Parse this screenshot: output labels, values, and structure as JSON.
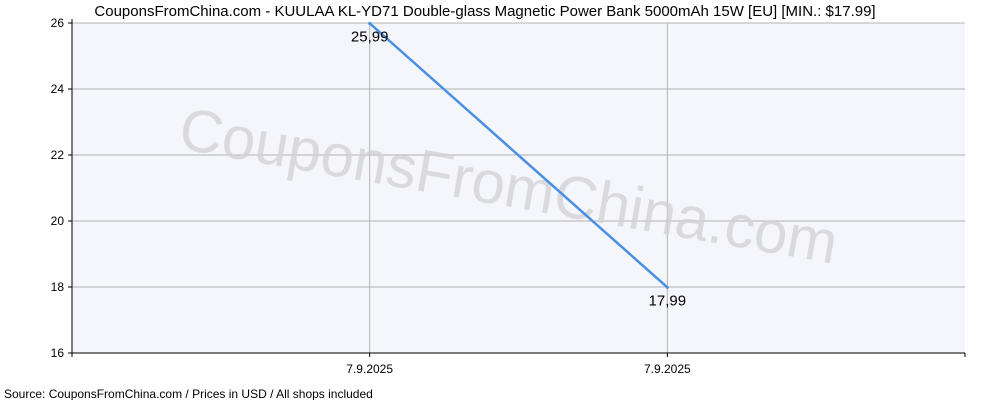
{
  "chart_data": {
    "type": "line",
    "title": "CouponsFromChina.com - KUULAA KL-YD71 Double-glass Magnetic Power Bank 5000mAh 15W [EU] [MIN.: $17.99]",
    "watermark": "CouponsFromChina.com",
    "source": "Source: CouponsFromChina.com / Prices in USD / All shops included",
    "categories": [
      "7.9.2025",
      "7.9.2025"
    ],
    "series": [
      {
        "values": [
          25.99,
          17.99
        ],
        "data_labels": [
          "25,99",
          "17,99"
        ],
        "color": "#4a90e2"
      }
    ],
    "ylim": [
      16,
      26
    ],
    "yticks": [
      16,
      18,
      20,
      22,
      24,
      26
    ],
    "grid": true,
    "plot_bg": "#f5f5fc",
    "grid_color": "#b4b4b4"
  }
}
